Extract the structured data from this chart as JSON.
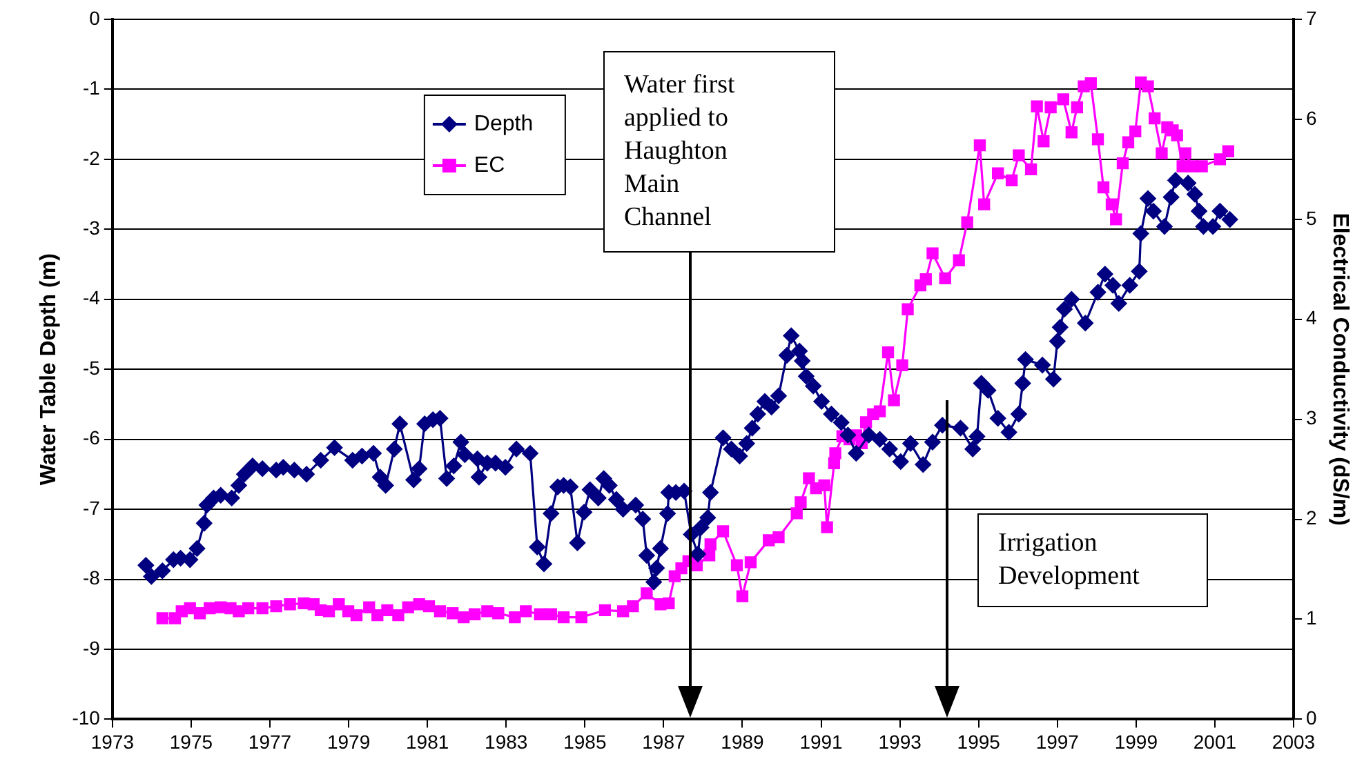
{
  "chart_data": {
    "type": "line",
    "ylabel": "Water Table Depth (m)",
    "y2label": "Electrical Conductivity (dS/m)",
    "xlim": [
      1973,
      2003
    ],
    "xticks": [
      1973,
      1975,
      1977,
      1979,
      1981,
      1983,
      1985,
      1987,
      1989,
      1991,
      1993,
      1995,
      1997,
      1999,
      2001,
      2003
    ],
    "ylim": [
      -10,
      0
    ],
    "yticks": [
      -10,
      -9,
      -8,
      -7,
      -6,
      -5,
      -4,
      -3,
      -2,
      -1,
      0
    ],
    "y2lim": [
      0,
      7
    ],
    "y2ticks": [
      0,
      1,
      2,
      3,
      4,
      5,
      6,
      7
    ],
    "grid": "y",
    "legend": "top left",
    "line_style": "solid",
    "series": [
      {
        "name": "Depth",
        "color": "#000080",
        "marker": "diamond",
        "x": [
          1973.85,
          1973.99,
          1974.27,
          1974.55,
          1974.73,
          1974.97,
          1975.15,
          1975.33,
          1975.4,
          1975.57,
          1975.75,
          1976.03,
          1976.21,
          1976.35,
          1976.56,
          1976.81,
          1977.16,
          1977.34,
          1977.62,
          1977.93,
          1978.29,
          1978.64,
          1979.1,
          1979.34,
          1979.63,
          1979.8,
          1979.94,
          1980.16,
          1980.3,
          1980.65,
          1980.79,
          1980.93,
          1981.14,
          1981.32,
          1981.49,
          1981.67,
          1981.85,
          1981.95,
          1982.27,
          1982.31,
          1982.52,
          1982.73,
          1982.98,
          1983.26,
          1983.61,
          1983.79,
          1983.96,
          1984.14,
          1984.31,
          1984.46,
          1984.63,
          1984.81,
          1984.98,
          1985.13,
          1985.34,
          1985.48,
          1985.62,
          1985.8,
          1985.97,
          1986.29,
          1986.47,
          1986.57,
          1986.75,
          1986.82,
          1986.92,
          1987.1,
          1987.13,
          1987.31,
          1987.52,
          1987.7,
          1987.87,
          1987.95,
          1988.12,
          1988.19,
          1988.51,
          1988.72,
          1988.93,
          1989.11,
          1989.25,
          1989.39,
          1989.57,
          1989.74,
          1989.92,
          1990.13,
          1990.24,
          1990.45,
          1990.52,
          1990.62,
          1990.8,
          1991.01,
          1991.26,
          1991.51,
          1991.68,
          1991.89,
          1992.21,
          1992.49,
          1992.74,
          1993.02,
          1993.27,
          1993.59,
          1993.83,
          1994.08,
          1994.54,
          1994.85,
          1994.96,
          1995.07,
          1995.24,
          1995.49,
          1995.77,
          1996.02,
          1996.12,
          1996.19,
          1996.62,
          1996.9,
          1997.0,
          1997.07,
          1997.18,
          1997.36,
          1997.71,
          1998.03,
          1998.21,
          1998.41,
          1998.56,
          1998.84,
          1999.08,
          1999.12,
          1999.3,
          1999.44,
          1999.72,
          1999.89,
          2000.0,
          2000.32,
          2000.49,
          2000.6,
          2000.71,
          2000.95,
          2001.13,
          2001.38
        ],
        "values": [
          -7.8,
          -7.96,
          -7.88,
          -7.72,
          -7.7,
          -7.72,
          -7.56,
          -7.2,
          -6.94,
          -6.84,
          -6.8,
          -6.84,
          -6.66,
          -6.5,
          -6.38,
          -6.42,
          -6.44,
          -6.4,
          -6.44,
          -6.5,
          -6.3,
          -6.12,
          -6.3,
          -6.24,
          -6.2,
          -6.54,
          -6.66,
          -6.14,
          -5.78,
          -6.58,
          -6.42,
          -5.78,
          -5.72,
          -5.7,
          -6.56,
          -6.38,
          -6.04,
          -6.22,
          -6.28,
          -6.54,
          -6.34,
          -6.34,
          -6.4,
          -6.14,
          -6.2,
          -7.54,
          -7.78,
          -7.06,
          -6.68,
          -6.66,
          -6.68,
          -7.48,
          -7.04,
          -6.72,
          -6.84,
          -6.56,
          -6.66,
          -6.86,
          -7.0,
          -6.94,
          -7.14,
          -7.66,
          -8.04,
          -7.84,
          -7.56,
          -7.06,
          -6.76,
          -6.76,
          -6.74,
          -7.36,
          -7.64,
          -7.26,
          -7.12,
          -6.76,
          -5.98,
          -6.14,
          -6.24,
          -6.06,
          -5.84,
          -5.64,
          -5.46,
          -5.54,
          -5.38,
          -4.8,
          -4.52,
          -4.74,
          -4.88,
          -5.1,
          -5.24,
          -5.46,
          -5.64,
          -5.76,
          -5.94,
          -6.2,
          -5.94,
          -6.0,
          -6.14,
          -6.32,
          -6.06,
          -6.36,
          -6.04,
          -5.8,
          -5.84,
          -6.14,
          -5.96,
          -5.2,
          -5.3,
          -5.7,
          -5.9,
          -5.64,
          -5.2,
          -4.86,
          -4.94,
          -5.14,
          -4.6,
          -4.4,
          -4.14,
          -4.0,
          -4.34,
          -3.9,
          -3.64,
          -3.8,
          -4.06,
          -3.8,
          -3.6,
          -3.06,
          -2.56,
          -2.74,
          -2.96,
          -2.54,
          -2.3,
          -2.34,
          -2.5,
          -2.74,
          -2.96,
          -2.96,
          -2.74,
          -2.86
        ]
      },
      {
        "name": "EC",
        "color": "#ff00ff",
        "marker": "square",
        "axis": "y2",
        "x": [
          1974.27,
          1974.59,
          1974.76,
          1974.97,
          1975.22,
          1975.47,
          1975.75,
          1976.0,
          1976.21,
          1976.45,
          1976.81,
          1977.16,
          1977.51,
          1977.86,
          1978.11,
          1978.29,
          1978.5,
          1978.75,
          1978.99,
          1979.2,
          1979.52,
          1979.73,
          1979.98,
          1980.26,
          1980.51,
          1980.79,
          1981.04,
          1981.32,
          1981.64,
          1981.92,
          1982.2,
          1982.52,
          1982.8,
          1983.22,
          1983.5,
          1983.86,
          1984.14,
          1984.46,
          1984.91,
          1985.51,
          1985.97,
          1986.22,
          1986.57,
          1986.92,
          1987.13,
          1987.28,
          1987.45,
          1987.63,
          1987.84,
          1988.16,
          1988.19,
          1988.51,
          1988.86,
          1989.0,
          1989.21,
          1989.67,
          1989.92,
          1990.38,
          1990.48,
          1990.69,
          1990.87,
          1991.08,
          1991.15,
          1991.33,
          1991.36,
          1991.54,
          1991.72,
          1991.89,
          1992.03,
          1992.14,
          1992.32,
          1992.49,
          1992.7,
          1992.85,
          1993.06,
          1993.2,
          1993.52,
          1993.66,
          1993.83,
          1994.15,
          1994.5,
          1994.71,
          1995.03,
          1995.14,
          1995.49,
          1995.84,
          1996.02,
          1996.33,
          1996.48,
          1996.65,
          1996.83,
          1997.15,
          1997.36,
          1997.5,
          1997.67,
          1997.85,
          1998.03,
          1998.17,
          1998.38,
          1998.49,
          1998.66,
          1998.8,
          1998.98,
          1999.12,
          1999.3,
          1999.47,
          1999.65,
          1999.79,
          1999.93,
          2000.04,
          2000.18,
          2000.25,
          2000.42,
          2000.67,
          2001.13,
          2001.34
        ],
        "values": [
          1.01,
          1.01,
          1.08,
          1.11,
          1.06,
          1.11,
          1.12,
          1.11,
          1.08,
          1.11,
          1.11,
          1.13,
          1.15,
          1.16,
          1.15,
          1.09,
          1.08,
          1.15,
          1.08,
          1.04,
          1.12,
          1.04,
          1.09,
          1.04,
          1.12,
          1.15,
          1.13,
          1.08,
          1.06,
          1.02,
          1.05,
          1.08,
          1.06,
          1.02,
          1.08,
          1.05,
          1.05,
          1.02,
          1.02,
          1.09,
          1.08,
          1.13,
          1.26,
          1.15,
          1.16,
          1.43,
          1.51,
          1.58,
          1.54,
          1.64,
          1.75,
          1.88,
          1.54,
          1.23,
          1.57,
          1.79,
          1.82,
          2.06,
          2.17,
          2.41,
          2.31,
          2.34,
          1.92,
          2.56,
          2.66,
          2.83,
          2.8,
          2.84,
          2.76,
          2.97,
          3.05,
          3.08,
          3.67,
          3.19,
          3.54,
          4.1,
          4.34,
          4.4,
          4.66,
          4.41,
          4.59,
          4.97,
          5.74,
          5.15,
          5.46,
          5.39,
          5.64,
          5.5,
          6.13,
          5.78,
          6.12,
          6.2,
          5.87,
          6.12,
          6.33,
          6.36,
          5.8,
          5.32,
          5.15,
          5.0,
          5.56,
          5.77,
          5.88,
          6.37,
          6.33,
          6.01,
          5.66,
          5.92,
          5.89,
          5.84,
          5.53,
          5.66,
          5.53,
          5.53,
          5.6,
          5.68
        ]
      }
    ],
    "annotations": [
      "Water first applied to Haughton Main Channel",
      "Irrigation Development"
    ]
  }
}
